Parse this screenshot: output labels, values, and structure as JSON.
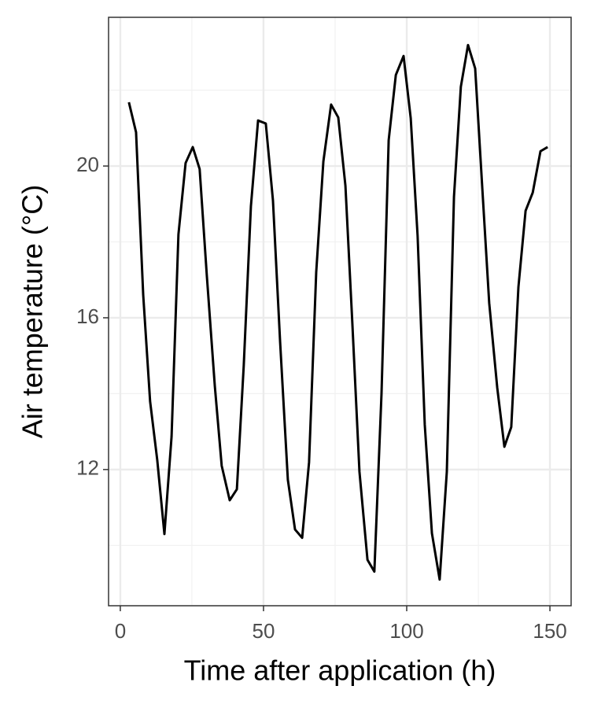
{
  "chart_data": {
    "type": "line",
    "x_label": "Time after application (h)",
    "y_label": "Air temperature (°C)",
    "xlim": [
      -4.1,
      157.4
    ],
    "ylim": [
      8.41,
      23.92
    ],
    "xticks": [
      0,
      50,
      100,
      150
    ],
    "yticks": [
      12,
      16,
      20
    ],
    "minor_xticks": [
      25,
      75,
      125
    ],
    "minor_yticks": [
      10,
      14,
      18,
      22
    ],
    "grid": true,
    "series": [
      {
        "color": "#000000",
        "x": [
          3.0,
          5.5,
          8.0,
          10.4,
          12.9,
          15.4,
          17.9,
          20.3,
          22.8,
          25.3,
          27.7,
          30.2,
          33.0,
          35.4,
          38.2,
          40.7,
          43.1,
          45.6,
          48.1,
          50.8,
          53.3,
          55.8,
          58.5,
          61.0,
          63.5,
          65.9,
          68.4,
          70.9,
          73.6,
          76.1,
          78.6,
          81.0,
          83.5,
          86.3,
          88.7,
          91.2,
          93.7,
          96.2,
          98.9,
          101.4,
          103.8,
          106.3,
          108.8,
          111.5,
          114.0,
          116.5,
          118.9,
          121.4,
          123.9,
          126.4,
          128.8,
          131.6,
          134.1,
          136.5,
          139.0,
          141.5,
          144.0,
          146.7,
          149.2
        ],
        "values": [
          21.68,
          20.89,
          16.6,
          13.8,
          12.25,
          10.3,
          12.87,
          18.2,
          20.08,
          20.5,
          19.92,
          17.12,
          14.2,
          12.1,
          11.19,
          11.48,
          14.74,
          18.94,
          21.2,
          21.12,
          19.09,
          15.36,
          11.73,
          10.42,
          10.2,
          12.19,
          17.2,
          20.12,
          21.62,
          21.28,
          19.48,
          15.88,
          11.94,
          9.62,
          9.31,
          14.0,
          20.68,
          22.4,
          22.9,
          21.26,
          18.16,
          13.18,
          10.32,
          9.1,
          11.94,
          19.19,
          22.09,
          23.19,
          22.57,
          19.4,
          16.39,
          14.16,
          12.6,
          13.12,
          16.81,
          18.82,
          19.3,
          20.39,
          20.5
        ]
      }
    ]
  }
}
